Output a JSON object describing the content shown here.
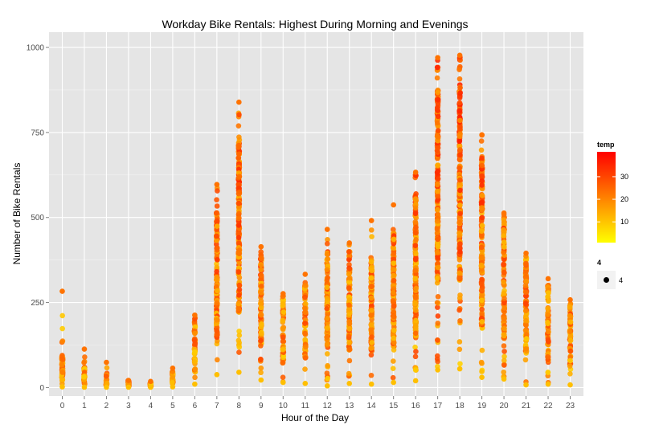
{
  "chart_data": {
    "type": "scatter",
    "title": "Workday Bike Rentals: Highest During Morning and Evenings",
    "xlabel": "Hour of the Day",
    "ylabel": "Number of Bike Rentals",
    "x_ticks": [
      "0",
      "1",
      "2",
      "3",
      "4",
      "5",
      "6",
      "7",
      "8",
      "9",
      "10",
      "11",
      "12",
      "13",
      "14",
      "15",
      "16",
      "17",
      "18",
      "19",
      "20",
      "21",
      "22",
      "23"
    ],
    "y_ticks": [
      0,
      250,
      500,
      750,
      1000
    ],
    "y_tick_labels": [
      "0",
      "250",
      "500",
      "750",
      "1000"
    ],
    "ylim": [
      -25,
      1045
    ],
    "xlim": [
      -0.6,
      23.6
    ],
    "grid": true,
    "background": "#E5E5E5",
    "color_scale": {
      "variable": "temp",
      "low_color": "#FFFF00",
      "high_color": "#FF0000",
      "min": 0.82,
      "max": 41,
      "breaks": [
        10,
        20,
        30
      ],
      "break_labels": [
        "10",
        "20",
        "30"
      ]
    },
    "size_legend": {
      "title": "4",
      "label": "4"
    },
    "series": [
      {
        "hours": [
          0,
          1,
          2,
          3,
          4,
          5,
          6,
          7,
          8,
          9,
          10,
          11,
          12,
          13,
          14,
          15,
          16,
          17,
          18,
          19,
          20,
          21,
          22,
          23
        ],
        "min_count": [
          2,
          1,
          1,
          1,
          1,
          2,
          10,
          38,
          45,
          22,
          15,
          12,
          5,
          12,
          10,
          15,
          20,
          52,
          55,
          30,
          25,
          8,
          10,
          8
        ],
        "max_count": [
          283,
          113,
          74,
          21,
          18,
          57,
          213,
          597,
          839,
          414,
          276,
          333,
          465,
          425,
          491,
          537,
          633,
          970,
          977,
          743,
          513,
          395,
          320,
          258
        ],
        "typical_low": [
          20,
          10,
          8,
          5,
          3,
          10,
          40,
          150,
          220,
          110,
          70,
          80,
          110,
          110,
          110,
          120,
          150,
          310,
          310,
          180,
          140,
          100,
          70,
          45
        ],
        "typical_high": [
          95,
          60,
          40,
          18,
          15,
          50,
          200,
          525,
          720,
          390,
          270,
          310,
          400,
          400,
          370,
          465,
          570,
          880,
          890,
          680,
          505,
          390,
          320,
          250
        ]
      }
    ]
  }
}
